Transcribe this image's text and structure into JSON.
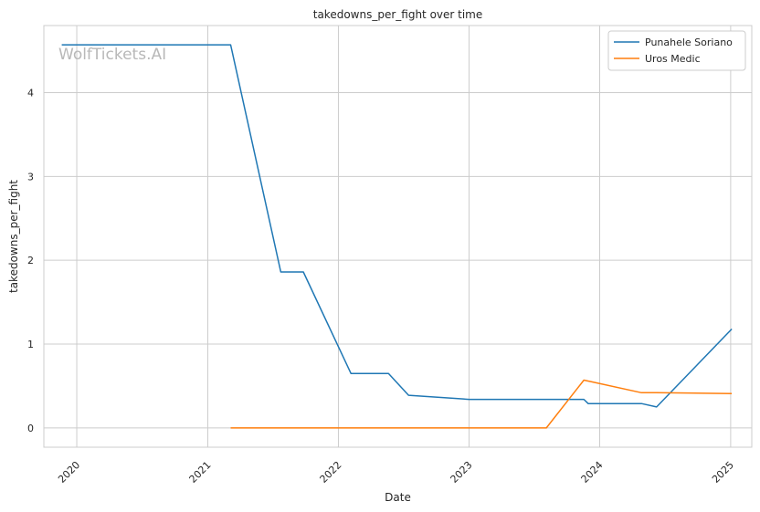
{
  "watermark": "WolfTickets.AI",
  "chart_data": {
    "type": "line",
    "title": "takedowns_per_fight over time",
    "xlabel": "Date",
    "ylabel": "takedowns_per_fight",
    "x_type": "date",
    "xlim": [
      "2019-10-01",
      "2025-03-01"
    ],
    "ylim": [
      -0.23,
      4.8
    ],
    "x_ticks": [
      {
        "value": "2020-01-01",
        "label": "2020"
      },
      {
        "value": "2021-01-01",
        "label": "2021"
      },
      {
        "value": "2022-01-01",
        "label": "2022"
      },
      {
        "value": "2023-01-01",
        "label": "2023"
      },
      {
        "value": "2024-01-01",
        "label": "2024"
      },
      {
        "value": "2025-01-01",
        "label": "2025"
      }
    ],
    "y_ticks": [
      {
        "value": 0,
        "label": "0"
      },
      {
        "value": 1,
        "label": "1"
      },
      {
        "value": 2,
        "label": "2"
      },
      {
        "value": 3,
        "label": "3"
      },
      {
        "value": 4,
        "label": "4"
      }
    ],
    "grid": true,
    "legend_position": "top-right",
    "series": [
      {
        "name": "Punahele Soriano",
        "color": "#1f77b4",
        "points": [
          {
            "x": "2019-11-20",
            "y": 4.57
          },
          {
            "x": "2021-03-06",
            "y": 4.57
          },
          {
            "x": "2021-07-24",
            "y": 1.86
          },
          {
            "x": "2021-09-25",
            "y": 1.86
          },
          {
            "x": "2022-02-05",
            "y": 0.65
          },
          {
            "x": "2022-05-21",
            "y": 0.65
          },
          {
            "x": "2022-07-16",
            "y": 0.39
          },
          {
            "x": "2023-01-01",
            "y": 0.34
          },
          {
            "x": "2023-11-18",
            "y": 0.34
          },
          {
            "x": "2023-11-30",
            "y": 0.29
          },
          {
            "x": "2024-04-27",
            "y": 0.29
          },
          {
            "x": "2024-06-08",
            "y": 0.25
          },
          {
            "x": "2025-01-04",
            "y": 1.18
          }
        ]
      },
      {
        "name": "Uros Medic",
        "color": "#ff7f0e",
        "points": [
          {
            "x": "2021-03-06",
            "y": 0.0
          },
          {
            "x": "2023-08-05",
            "y": 0.0
          },
          {
            "x": "2023-11-18",
            "y": 0.57
          },
          {
            "x": "2023-12-10",
            "y": 0.55
          },
          {
            "x": "2024-04-27",
            "y": 0.42
          },
          {
            "x": "2024-06-08",
            "y": 0.42
          },
          {
            "x": "2025-01-04",
            "y": 0.41
          }
        ]
      }
    ]
  }
}
